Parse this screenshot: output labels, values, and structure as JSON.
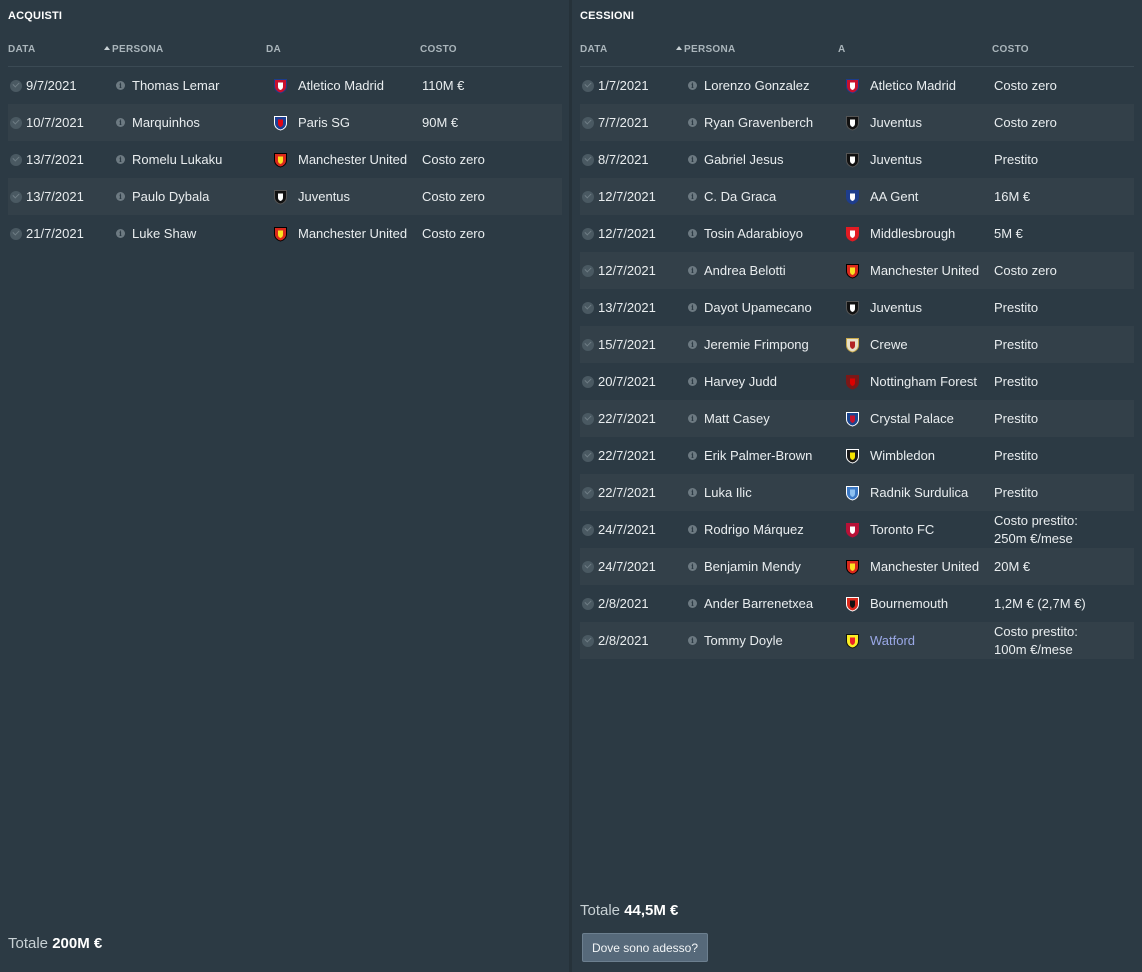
{
  "acquisti": {
    "title": "ACQUISTI",
    "headers": {
      "data": "DATA",
      "persona": "PERSONA",
      "club": "DA",
      "costo": "COSTO"
    },
    "rows": [
      {
        "date": "9/7/2021",
        "person": "Thomas Lemar",
        "club": "Atletico Madrid",
        "crest": "atletico-crest",
        "cost": "110M €"
      },
      {
        "date": "10/7/2021",
        "person": "Marquinhos",
        "club": "Paris SG",
        "crest": "psg-crest",
        "cost": "90M €"
      },
      {
        "date": "13/7/2021",
        "person": "Romelu Lukaku",
        "club": "Manchester United",
        "crest": "manutd-crest",
        "cost": "Costo zero"
      },
      {
        "date": "13/7/2021",
        "person": "Paulo Dybala",
        "club": "Juventus",
        "crest": "juventus-crest",
        "cost": "Costo zero"
      },
      {
        "date": "21/7/2021",
        "person": "Luke Shaw",
        "club": "Manchester United",
        "crest": "manutd-crest",
        "cost": "Costo zero"
      }
    ],
    "total_label": "Totale",
    "total_value": "200M €"
  },
  "cessioni": {
    "title": "CESSIONI",
    "headers": {
      "data": "DATA",
      "persona": "PERSONA",
      "club": "A",
      "costo": "COSTO"
    },
    "rows": [
      {
        "date": "1/7/2021",
        "person": "Lorenzo Gonzalez",
        "club": "Atletico Madrid",
        "crest": "atletico-crest",
        "cost": "Costo zero"
      },
      {
        "date": "7/7/2021",
        "person": "Ryan Gravenberch",
        "club": "Juventus",
        "crest": "juventus-crest",
        "cost": "Costo zero"
      },
      {
        "date": "8/7/2021",
        "person": "Gabriel Jesus",
        "club": "Juventus",
        "crest": "juventus-crest",
        "cost": "Prestito"
      },
      {
        "date": "12/7/2021",
        "person": "C. Da Graca",
        "club": "AA Gent",
        "crest": "gent-crest",
        "cost": "16M €"
      },
      {
        "date": "12/7/2021",
        "person": "Tosin Adarabioyo",
        "club": "Middlesbrough",
        "crest": "middlesbrough-crest",
        "cost": "5M €"
      },
      {
        "date": "12/7/2021",
        "person": "Andrea Belotti",
        "club": "Manchester United",
        "crest": "manutd-crest",
        "cost": "Costo zero"
      },
      {
        "date": "13/7/2021",
        "person": "Dayot Upamecano",
        "club": "Juventus",
        "crest": "juventus-crest",
        "cost": "Prestito"
      },
      {
        "date": "15/7/2021",
        "person": "Jeremie Frimpong",
        "club": "Crewe",
        "crest": "crewe-crest",
        "cost": "Prestito"
      },
      {
        "date": "20/7/2021",
        "person": "Harvey Judd",
        "club": "Nottingham Forest",
        "crest": "forest-crest",
        "cost": "Prestito"
      },
      {
        "date": "22/7/2021",
        "person": "Matt Casey",
        "club": "Crystal Palace",
        "crest": "palace-crest",
        "cost": "Prestito"
      },
      {
        "date": "22/7/2021",
        "person": "Erik Palmer-Brown",
        "club": "Wimbledon",
        "crest": "wimbledon-crest",
        "cost": "Prestito"
      },
      {
        "date": "22/7/2021",
        "person": "Luka Ilic",
        "club": "Radnik Surdulica",
        "crest": "radnik-crest",
        "cost": "Prestito"
      },
      {
        "date": "24/7/2021",
        "person": "Rodrigo Márquez",
        "club": "Toronto FC",
        "crest": "toronto-crest",
        "cost": "Costo prestito:",
        "cost2": "250m €/mese"
      },
      {
        "date": "24/7/2021",
        "person": "Benjamin Mendy",
        "club": "Manchester United",
        "crest": "manutd-crest",
        "cost": "20M €"
      },
      {
        "date": "2/8/2021",
        "person": "Ander Barrenetxea",
        "club": "Bournemouth",
        "crest": "bournemouth-crest",
        "cost": "1,2M € (2,7M €)"
      },
      {
        "date": "2/8/2021",
        "person": "Tommy Doyle",
        "club": "Watford",
        "crest": "watford-crest",
        "cost": "Costo prestito:",
        "cost2": "100m €/mese",
        "club_link": true
      }
    ],
    "total_label": "Totale",
    "total_value": "44,5M €",
    "button_label": "Dove sono adesso?"
  },
  "crest_colors": {
    "atletico-crest": [
      "#c8102e",
      "#ffffff",
      "#1c3c8c"
    ],
    "psg-crest": [
      "#1c3f94",
      "#e30613",
      "#ffffff"
    ],
    "manutd-crest": [
      "#da291c",
      "#fbe122",
      "#000000"
    ],
    "juventus-crest": [
      "#111111",
      "#ffffff",
      "#555555"
    ],
    "gent-crest": [
      "#1e3d8c",
      "#ffffff",
      "#1e3d8c"
    ],
    "middlesbrough-crest": [
      "#e21b23",
      "#ffffff",
      "#e21b23"
    ],
    "crewe-crest": [
      "#e8e0c8",
      "#b22222",
      "#c8a94a"
    ],
    "forest-crest": [
      "#7a1818",
      "#dd0000",
      "#7a1818"
    ],
    "palace-crest": [
      "#1b458f",
      "#c4122e",
      "#ffffff"
    ],
    "wimbledon-crest": [
      "#1a1a1a",
      "#f4e400",
      "#ffffff"
    ],
    "radnik-crest": [
      "#3b78c4",
      "#8ec1f0",
      "#ffffff"
    ],
    "toronto-crest": [
      "#b81137",
      "#ffffff",
      "#b81137"
    ],
    "bournemouth-crest": [
      "#da291c",
      "#111111",
      "#ffffff"
    ],
    "watford-crest": [
      "#fbee23",
      "#ed2127",
      "#111111"
    ]
  }
}
